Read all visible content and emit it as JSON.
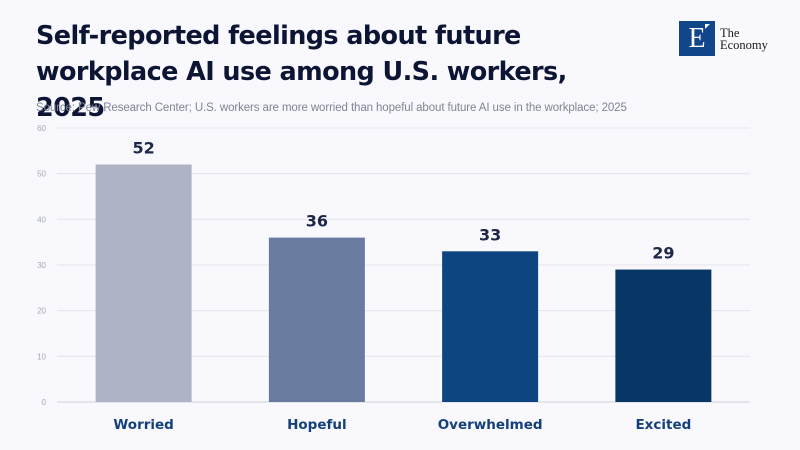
{
  "header": {
    "title_line1": "Self-reported feelings about future",
    "title_line2": "workplace AI use among U.S. workers, 2025",
    "subtitle": "Source: Pew Research Center; U.S. workers are more worried than hopeful about future AI use in the workplace; 2025"
  },
  "logo": {
    "mark": "E",
    "line1": "The",
    "line2": "Economy",
    "color": "#12468a"
  },
  "chart_data": {
    "type": "bar",
    "title": "Self-reported feelings about future workplace AI use among U.S. workers, 2025",
    "subtitle": "Source: Pew Research Center; U.S. workers are more worried than hopeful about future AI use in the workplace; 2025",
    "categories": [
      "Worried",
      "Hopeful",
      "Overwhelmed",
      "Excited"
    ],
    "values": [
      52,
      36,
      33,
      29
    ],
    "value_labels": [
      "52",
      "36",
      "33",
      "29"
    ],
    "colors": [
      "#aeb4c6",
      "#6a7ba0",
      "#0d4580",
      "#083766"
    ],
    "xlabel": "",
    "ylabel": "",
    "ylim": [
      0,
      60
    ],
    "yticks": [
      0,
      10,
      20,
      30,
      40,
      50,
      60
    ],
    "grid": true,
    "legend": "none"
  }
}
